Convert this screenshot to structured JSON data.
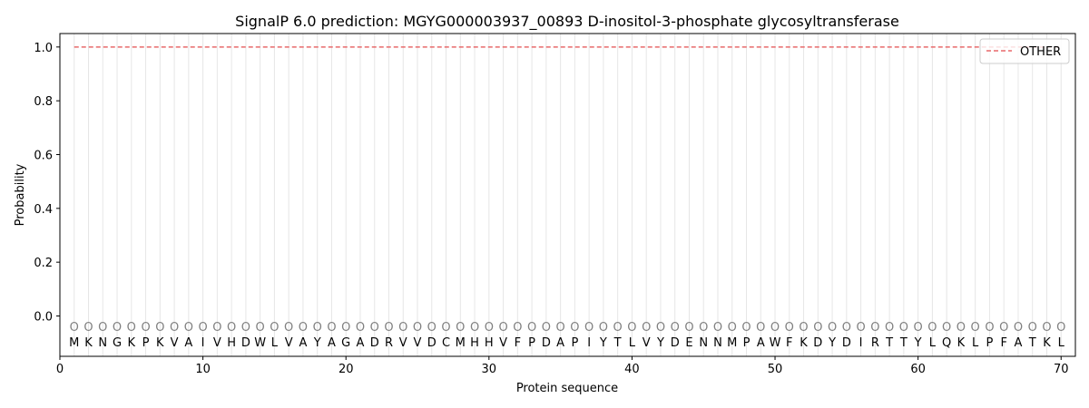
{
  "chart_data": {
    "type": "line",
    "title": "SignalP 6.0 prediction: MGYG000003937_00893 D-inositol-3-phosphate glycosyltransferase",
    "xlabel": "Protein sequence",
    "ylabel": "Probability",
    "xlim": [
      0,
      71
    ],
    "ylim": [
      -0.15,
      1.05
    ],
    "xticks": [
      0,
      10,
      20,
      30,
      40,
      50,
      60,
      70
    ],
    "yticks": [
      0.0,
      0.2,
      0.4,
      0.6,
      0.8,
      1.0
    ],
    "ytick_labels": [
      "0.0",
      "0.2",
      "0.4",
      "0.6",
      "0.8",
      "1.0"
    ],
    "sequence": [
      "M",
      "K",
      "N",
      "G",
      "K",
      "P",
      "K",
      "V",
      "A",
      "I",
      "V",
      "H",
      "D",
      "W",
      "L",
      "V",
      "A",
      "Y",
      "A",
      "G",
      "A",
      "D",
      "R",
      "V",
      "V",
      "D",
      "C",
      "M",
      "H",
      "H",
      "V",
      "F",
      "P",
      "D",
      "A",
      "P",
      "I",
      "Y",
      "T",
      "L",
      "V",
      "Y",
      "D",
      "E",
      "N",
      "N",
      "M",
      "P",
      "A",
      "W",
      "F",
      "K",
      "D",
      "Y",
      "D",
      "I",
      "R",
      "T",
      "T",
      "Y",
      "L",
      "Q",
      "K",
      "L",
      "P",
      "F",
      "A",
      "T",
      "K",
      "L"
    ],
    "predicted_label": "O",
    "series": [
      {
        "name": "OTHER",
        "color": "#e8696b",
        "style": "dashed",
        "x_start": 1,
        "x_end": 70,
        "value": 1.0
      }
    ],
    "legend_position": "top-right",
    "grid": "vertical lines at each residue"
  }
}
